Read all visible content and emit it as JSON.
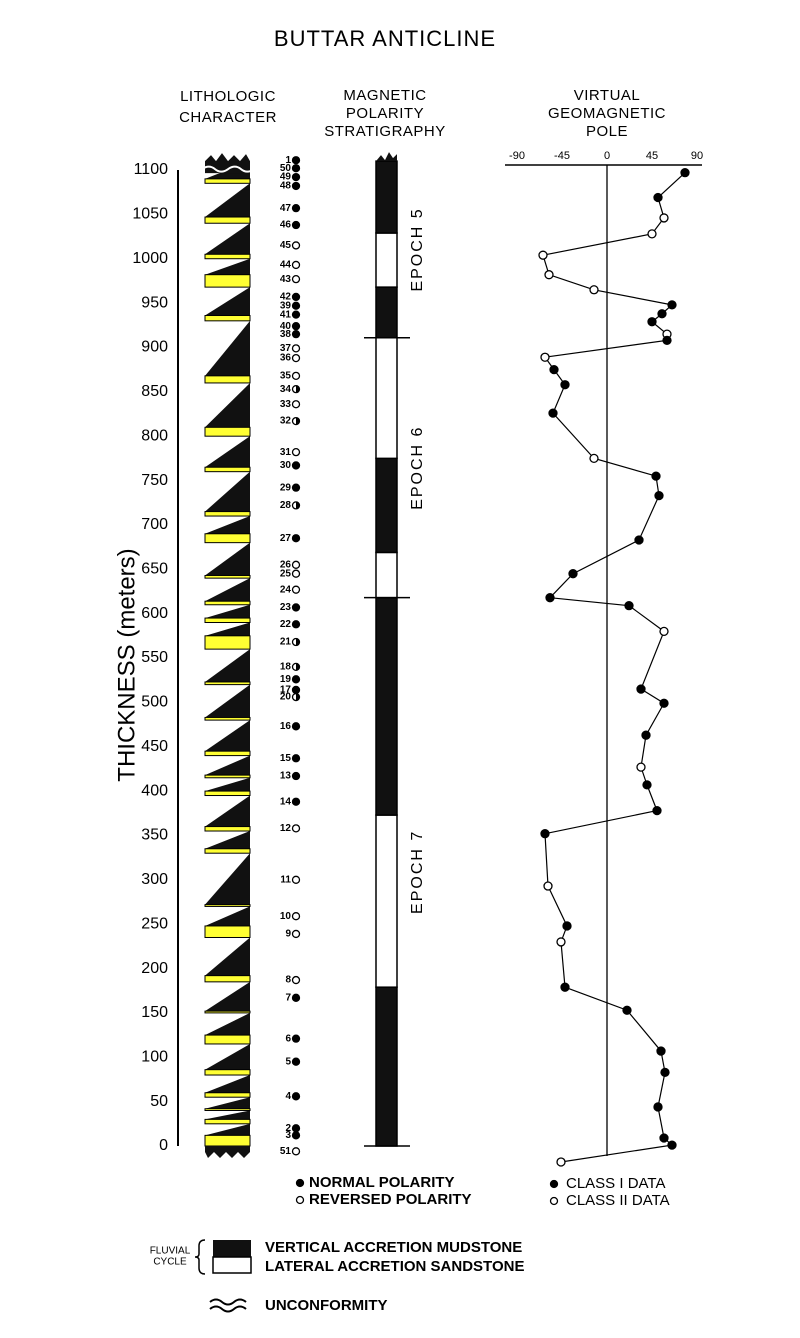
{
  "title": "BUTTAR ANTICLINE",
  "chart_data": [
    {
      "type": "lithology",
      "header": [
        "LITHOLOGIC",
        "CHARACTER"
      ],
      "ylabel": "THICKNESS (meters)",
      "ylim": [
        0,
        1100
      ],
      "yticks": [
        0,
        50,
        100,
        150,
        200,
        250,
        300,
        350,
        400,
        450,
        500,
        550,
        600,
        650,
        700,
        750,
        800,
        850,
        900,
        950,
        1000,
        1050,
        1100
      ],
      "top": 1110,
      "cycles": {
        "base": [
          0,
          25,
          40,
          55,
          80,
          115,
          150,
          185,
          235,
          270,
          330,
          355,
          395,
          415,
          440,
          480,
          520,
          560,
          590,
          610,
          640,
          680,
          710,
          760,
          800,
          860,
          930,
          968,
          1000,
          1040,
          1085
        ],
        "sand_top": [
          12,
          30,
          42,
          60,
          86,
          125,
          152,
          192,
          248,
          272,
          335,
          360,
          400,
          418,
          445,
          483,
          523,
          575,
          595,
          614,
          643,
          690,
          715,
          765,
          810,
          868,
          936,
          982,
          1005,
          1047,
          1090
        ]
      },
      "sand_color": "#ffff33",
      "mud_color": "#111111"
    },
    {
      "type": "samples",
      "labels": [
        1,
        50,
        49,
        48,
        47,
        46,
        45,
        44,
        43,
        42,
        39,
        41,
        40,
        38,
        37,
        36,
        35,
        34,
        33,
        32,
        31,
        30,
        29,
        28,
        27,
        26,
        25,
        24,
        23,
        22,
        21,
        18,
        19,
        17,
        20,
        16,
        15,
        13,
        14,
        12,
        11,
        10,
        9,
        8,
        7,
        6,
        5,
        4,
        2,
        3,
        51
      ],
      "thickness": [
        1111,
        1102,
        1092,
        1082,
        1057,
        1038,
        1015,
        993,
        977,
        957,
        947,
        937,
        924,
        915,
        899,
        888,
        868,
        853,
        836,
        817,
        782,
        767,
        742,
        722,
        685,
        655,
        645,
        627,
        607,
        588,
        568,
        540,
        526,
        514,
        506,
        473,
        437,
        417,
        388,
        358,
        300,
        259,
        239,
        187,
        167,
        121,
        95,
        56,
        20,
        12,
        -6
      ],
      "symbol": [
        "filled",
        "filled",
        "filled",
        "filled",
        "filled",
        "filled",
        "open",
        "open",
        "open",
        "filled",
        "filled",
        "filled",
        "filled",
        "filled",
        "open",
        "open",
        "open",
        "half",
        "open",
        "half",
        "open",
        "filled",
        "filled",
        "half",
        "filled",
        "open",
        "open",
        "open",
        "filled",
        "filled",
        "half",
        "half",
        "filled",
        "filled",
        "half",
        "filled",
        "filled",
        "filled",
        "filled",
        "open",
        "open",
        "open",
        "open",
        "open",
        "filled",
        "filled",
        "filled",
        "filled",
        "filled",
        "filled",
        "open"
      ],
      "legend": [
        "NORMAL POLARITY",
        "REVERSED POLARITY"
      ]
    },
    {
      "type": "polarity",
      "header": [
        "MAGNETIC",
        "POLARITY",
        "STRATIGRAPHY"
      ],
      "intervals": {
        "base": [
          0,
          179,
          373,
          618,
          669,
          775,
          911,
          968,
          1029
        ],
        "top": [
          179,
          373,
          618,
          669,
          775,
          911,
          968,
          1029,
          1110
        ],
        "polarity": [
          "normal",
          "reversed",
          "normal",
          "reversed",
          "normal",
          "reversed",
          "normal",
          "reversed",
          "normal"
        ]
      },
      "epochs": {
        "names": [
          "EPOCH 5",
          "EPOCH 6",
          "EPOCH 7"
        ],
        "base": [
          911,
          618,
          0
        ],
        "top": [
          1110,
          911,
          618
        ]
      }
    },
    {
      "type": "line",
      "header": [
        "VIRTUAL",
        "GEOMAGNETIC",
        "POLE"
      ],
      "xlim": [
        -90,
        90
      ],
      "xticks": [
        -90,
        -45,
        0,
        45,
        90
      ],
      "x": [
        78,
        51,
        57,
        45,
        -64,
        -58,
        -13,
        65,
        55,
        45,
        60,
        60,
        -62,
        -53,
        -42,
        -54,
        -13,
        49,
        52,
        32,
        -34,
        -57,
        22,
        57,
        34,
        57,
        39,
        34,
        40,
        50,
        -62,
        -59,
        -40,
        -46,
        -42,
        20,
        54,
        58,
        51,
        57,
        65,
        -46
      ],
      "y": [
        1097,
        1069,
        1046,
        1028,
        1004,
        982,
        965,
        948,
        938,
        929,
        915,
        908,
        889,
        875,
        858,
        826,
        775,
        755,
        733,
        683,
        645,
        618,
        609,
        580,
        515,
        499,
        463,
        427,
        407,
        378,
        352,
        293,
        248,
        230,
        179,
        153,
        107,
        83,
        44,
        9,
        1,
        -18
      ],
      "class": [
        1,
        1,
        2,
        2,
        2,
        2,
        2,
        1,
        1,
        1,
        2,
        1,
        2,
        1,
        1,
        1,
        2,
        1,
        1,
        1,
        1,
        1,
        1,
        2,
        1,
        1,
        1,
        2,
        1,
        1,
        1,
        2,
        1,
        2,
        1,
        1,
        1,
        1,
        1,
        1,
        1,
        2
      ],
      "legend": [
        "CLASS I DATA",
        "CLASS II DATA"
      ]
    }
  ],
  "key": {
    "cycle": [
      "FLUVIAL",
      "CYCLE"
    ],
    "mudstone": "VERTICAL ACCRETION MUDSTONE",
    "sandstone": "LATERAL ACCRETION SANDSTONE",
    "unconformity": "UNCONFORMITY"
  }
}
